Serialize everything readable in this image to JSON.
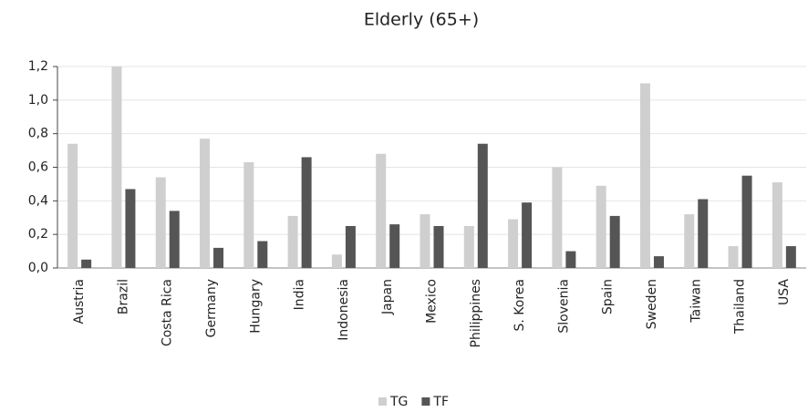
{
  "chart_data": {
    "type": "bar",
    "title": "Elderly (65+)",
    "categories": [
      "Austria",
      "Brazil",
      "Costa Rica",
      "Germany",
      "Hungary",
      "India",
      "Indonesia",
      "Japan",
      "Mexico",
      "Philippines",
      "S. Korea",
      "Slovenia",
      "Spain",
      "Sweden",
      "Taiwan",
      "Thailand",
      "USA"
    ],
    "series": [
      {
        "name": "TG",
        "color": "#cfcfcf",
        "values": [
          0.74,
          1.2,
          0.54,
          0.77,
          0.63,
          0.31,
          0.08,
          0.68,
          0.32,
          0.25,
          0.29,
          0.6,
          0.49,
          1.1,
          0.32,
          0.13,
          0.51
        ]
      },
      {
        "name": "TF",
        "color": "#555555",
        "values": [
          0.05,
          0.47,
          0.34,
          0.12,
          0.16,
          0.66,
          0.25,
          0.26,
          0.25,
          0.74,
          0.39,
          0.1,
          0.31,
          0.07,
          0.41,
          0.55,
          0.13
        ]
      }
    ],
    "ylim": [
      0,
      1.2
    ],
    "yticks": [
      {
        "value": 0,
        "label": "0,0"
      },
      {
        "value": 0.2,
        "label": "0,2"
      },
      {
        "value": 0.4,
        "label": "0,4"
      },
      {
        "value": 0.6,
        "label": "0,6"
      },
      {
        "value": 0.8,
        "label": "0,8"
      },
      {
        "value": 1,
        "label": "1,0"
      },
      {
        "value": 1.2,
        "label": "1,2"
      }
    ],
    "grid": true,
    "legend": "bottom"
  }
}
